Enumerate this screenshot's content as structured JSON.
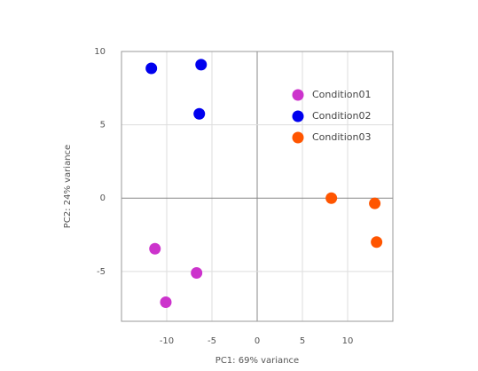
{
  "chart_data": {
    "type": "scatter",
    "x_label": "PC1: 69% variance",
    "y_label": "PC2: 24% variance",
    "xlim": [
      -15,
      15
    ],
    "ylim": [
      -8.4,
      10
    ],
    "xticks": [
      -10,
      -5,
      0,
      5,
      10
    ],
    "yticks": [
      -5,
      0,
      5,
      10
    ],
    "grid": true,
    "legend": "upper right",
    "series": [
      {
        "name": "Condition01",
        "color": "#cc33cc",
        "x": [
          -11.3,
          -6.7,
          -10.1
        ],
        "values": [
          -3.45,
          -5.1,
          -7.1
        ]
      },
      {
        "name": "Condition02",
        "color": "#0000ee",
        "x": [
          -11.7,
          -6.2,
          -6.4
        ],
        "values": [
          8.85,
          9.1,
          5.75
        ]
      },
      {
        "name": "Condition03",
        "color": "#ff5500",
        "x": [
          8.2,
          13.0,
          13.2
        ],
        "values": [
          0,
          -0.36,
          -3.0
        ]
      }
    ]
  }
}
